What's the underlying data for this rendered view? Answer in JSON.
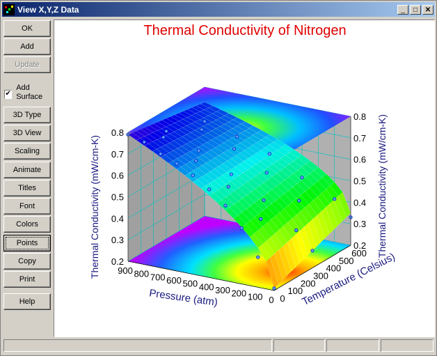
{
  "window": {
    "title": "View X,Y,Z Data"
  },
  "sidebar": {
    "ok": "OK",
    "add": "Add",
    "update": "Update",
    "add_surface": "Add Surface",
    "add_surface_checked": true,
    "type_3d": "3D Type",
    "view_3d": "3D View",
    "scaling": "Scaling",
    "animate": "Animate",
    "titles": "Titles",
    "font": "Font",
    "colors": "Colors",
    "points": "Points",
    "copy": "Copy",
    "print": "Print",
    "help": "Help"
  },
  "chart_data": {
    "type": "3d-surface",
    "title": "Thermal Conductivity of Nitrogen",
    "xlabel": "Pressure (atm)",
    "ylabel": "Temperature (Celsius)",
    "zlabel": "Thermal Conductivity (mW/cm-K)",
    "x_ticks": [
      "0",
      "100",
      "200",
      "300",
      "400",
      "500",
      "600",
      "700",
      "800",
      "900"
    ],
    "y_ticks": [
      "0",
      "100",
      "200",
      "300",
      "400",
      "500",
      "600"
    ],
    "z_ticks_left": [
      "0.2",
      "0.3",
      "0.4",
      "0.5",
      "0.6",
      "0.7",
      "0.8"
    ],
    "z_ticks_right": [
      "0.2",
      "0.3",
      "0.4",
      "0.5",
      "0.6",
      "0.7",
      "0.8"
    ],
    "xlim": [
      0,
      900
    ],
    "ylim": [
      0,
      600
    ],
    "zlim": [
      0.2,
      0.8
    ],
    "grid": true,
    "colormap": "rainbow",
    "colors": {
      "title": "#e00000",
      "axis_labels": "#1a1a80",
      "wall": "#a0a0a0",
      "grid": "#00c0c0",
      "points": "#3060ff"
    },
    "points": [
      [
        900,
        0,
        0.79
      ],
      [
        800,
        0,
        0.77
      ],
      [
        700,
        0,
        0.73
      ],
      [
        600,
        0,
        0.7
      ],
      [
        500,
        0,
        0.66
      ],
      [
        400,
        0,
        0.61
      ],
      [
        300,
        0,
        0.55
      ],
      [
        200,
        0,
        0.46
      ],
      [
        100,
        0,
        0.34
      ],
      [
        0,
        0,
        0.21
      ],
      [
        900,
        300,
        0.7
      ],
      [
        700,
        300,
        0.64
      ],
      [
        500,
        300,
        0.56
      ],
      [
        300,
        300,
        0.47
      ],
      [
        100,
        300,
        0.36
      ],
      [
        0,
        300,
        0.28
      ],
      [
        900,
        600,
        0.64
      ],
      [
        700,
        600,
        0.6
      ],
      [
        500,
        600,
        0.55
      ],
      [
        300,
        600,
        0.47
      ],
      [
        100,
        600,
        0.4
      ],
      [
        0,
        600,
        0.33
      ],
      [
        800,
        150,
        0.74
      ],
      [
        600,
        150,
        0.66
      ],
      [
        400,
        150,
        0.57
      ],
      [
        200,
        150,
        0.45
      ],
      [
        800,
        450,
        0.67
      ],
      [
        600,
        450,
        0.61
      ],
      [
        400,
        450,
        0.53
      ],
      [
        200,
        450,
        0.43
      ]
    ]
  }
}
